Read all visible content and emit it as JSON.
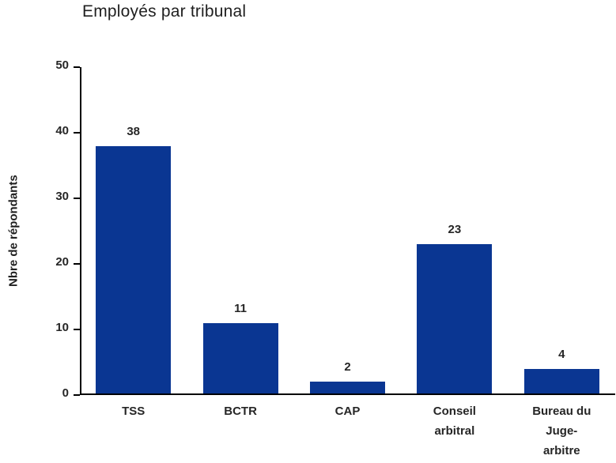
{
  "title": "Employés par tribunal",
  "y_axis": {
    "label": "Nbre de répondants"
  },
  "colors": {
    "bar": "#0A3692",
    "axis": "#000000",
    "text": "#262626"
  },
  "chart_data": {
    "type": "bar",
    "title": "Employés par tribunal",
    "xlabel": "",
    "ylabel": "Nbre de répondants",
    "categories": [
      "TSS",
      "BCTR",
      "CAP",
      "Conseil arbitral",
      "Bureau du Juge-arbitre"
    ],
    "category_display": [
      [
        "TSS"
      ],
      [
        "BCTR"
      ],
      [
        "CAP"
      ],
      [
        "Conseil",
        "arbitral"
      ],
      [
        "Bureau du",
        "Juge-",
        "arbitre"
      ]
    ],
    "values": [
      38,
      11,
      2,
      23,
      4
    ],
    "data_labels": [
      "38",
      "11",
      "2",
      "23",
      "4"
    ],
    "ylim": [
      0,
      50
    ],
    "yticks": [
      0,
      10,
      20,
      30,
      40,
      50
    ],
    "grid": false,
    "legend": false
  }
}
